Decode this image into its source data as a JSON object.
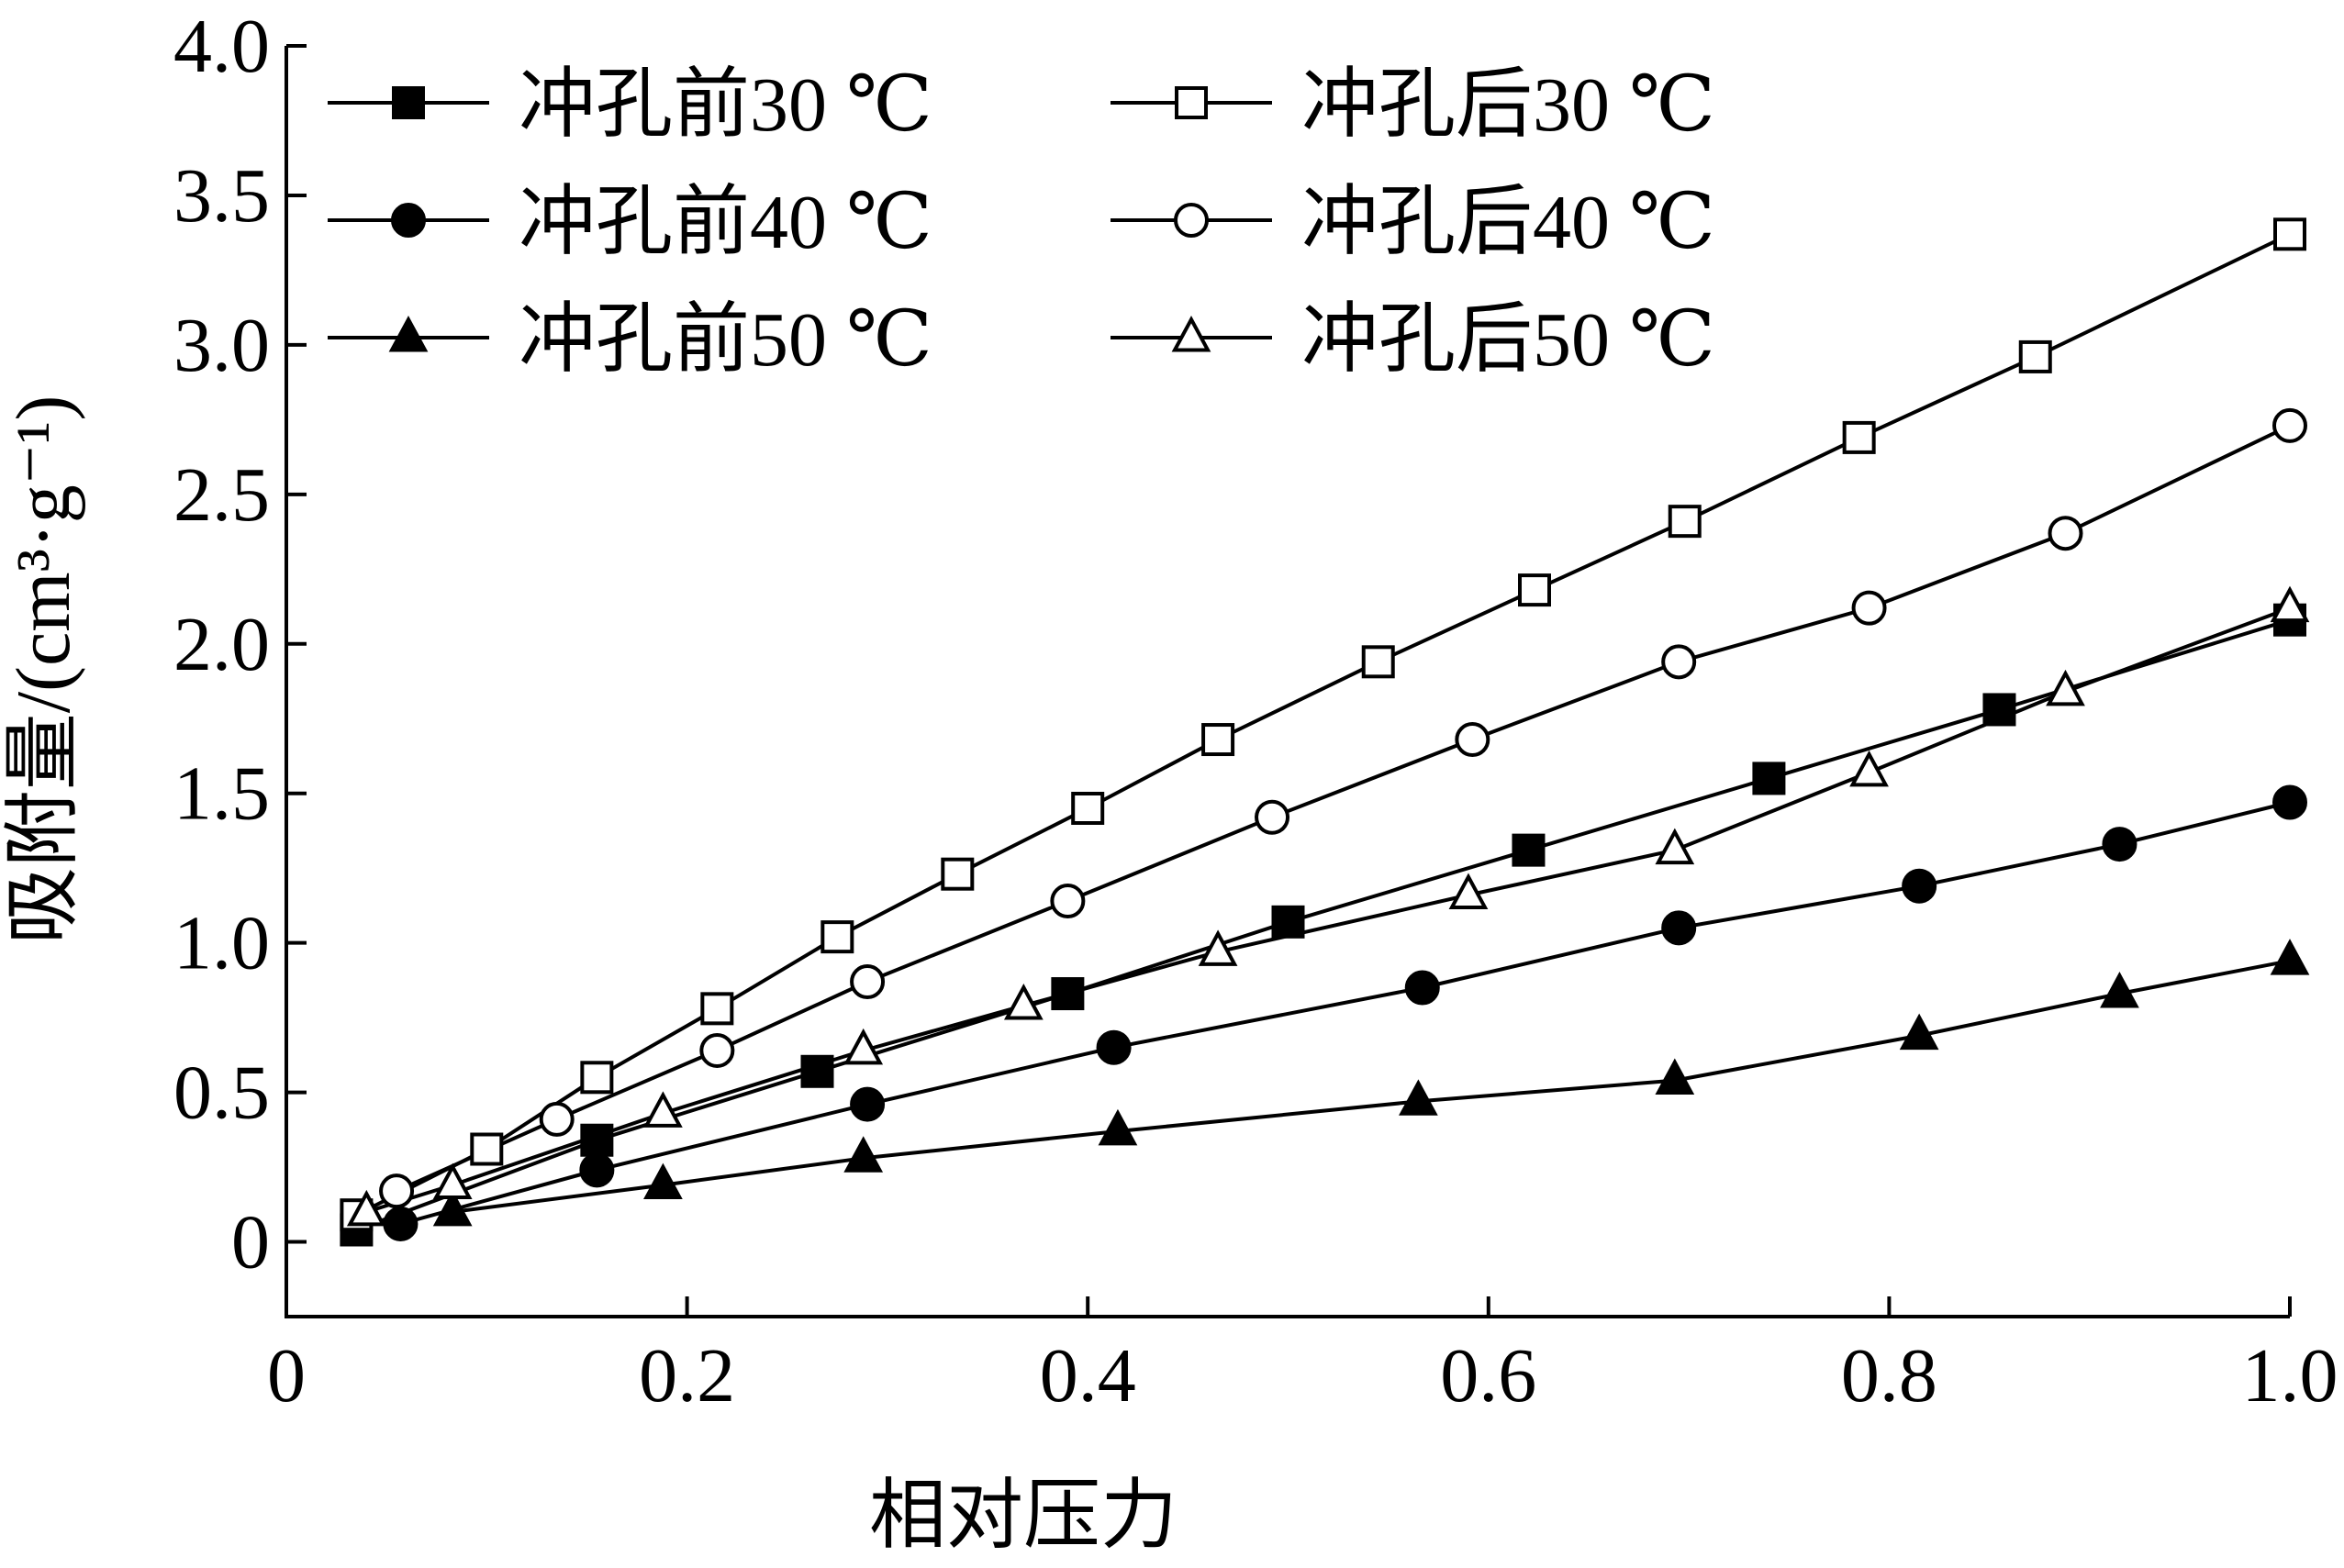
{
  "chart_data": {
    "type": "line",
    "xlabel": "相对压力",
    "ylabel": "吸附量/(cm³·g⁻¹)",
    "xlim": [
      0,
      1.0
    ],
    "ylim": [
      -0.25,
      4.0
    ],
    "x_ticks": [
      0,
      0.2,
      0.4,
      0.6,
      0.8,
      1.0
    ],
    "x_tick_labels": [
      "0",
      "0.2",
      "0.4",
      "0.6",
      "0.8",
      "1.0"
    ],
    "y_ticks": [
      0,
      0.5,
      1.0,
      1.5,
      2.0,
      2.5,
      3.0,
      3.5,
      4.0
    ],
    "y_tick_labels": [
      "0",
      "0.5",
      "1.0",
      "1.5",
      "2.0",
      "2.5",
      "3.0",
      "3.5",
      "4.0"
    ],
    "grid": false,
    "legend_position": "top-left",
    "series": [
      {
        "name": "冲孔前30 ℃",
        "marker": "square-filled",
        "x": [
          0.035,
          0.155,
          0.265,
          0.39,
          0.5,
          0.62,
          0.74,
          0.855,
          1.0
        ],
        "y": [
          0.04,
          0.34,
          0.57,
          0.83,
          1.07,
          1.31,
          1.55,
          1.78,
          2.08
        ]
      },
      {
        "name": "冲孔前40 ℃",
        "marker": "circle-filled",
        "x": [
          0.057,
          0.155,
          0.29,
          0.413,
          0.567,
          0.695,
          0.815,
          0.915,
          1.0
        ],
        "y": [
          0.06,
          0.24,
          0.46,
          0.65,
          0.85,
          1.05,
          1.19,
          1.33,
          1.47
        ]
      },
      {
        "name": "冲孔前50 ℃",
        "marker": "triangle-filled",
        "x": [
          0.083,
          0.188,
          0.288,
          0.415,
          0.565,
          0.693,
          0.815,
          0.915,
          1.0
        ],
        "y": [
          0.1,
          0.19,
          0.28,
          0.37,
          0.47,
          0.54,
          0.69,
          0.83,
          0.94
        ]
      },
      {
        "name": "冲孔后30 ℃",
        "marker": "square-open",
        "x": [
          0.035,
          0.1,
          0.155,
          0.215,
          0.275,
          0.335,
          0.4,
          0.465,
          0.545,
          0.623,
          0.698,
          0.785,
          0.873,
          1.0
        ],
        "y": [
          0.09,
          0.31,
          0.55,
          0.78,
          1.02,
          1.23,
          1.45,
          1.68,
          1.94,
          2.18,
          2.41,
          2.69,
          2.96,
          3.37
        ]
      },
      {
        "name": "冲孔后40 ℃",
        "marker": "circle-open",
        "x": [
          0.055,
          0.135,
          0.215,
          0.29,
          0.39,
          0.492,
          0.592,
          0.695,
          0.79,
          0.888,
          1.0
        ],
        "y": [
          0.17,
          0.41,
          0.64,
          0.87,
          1.14,
          1.42,
          1.68,
          1.94,
          2.12,
          2.37,
          2.73
        ]
      },
      {
        "name": "冲孔后50 ℃",
        "marker": "triangle-open",
        "x": [
          0.04,
          0.083,
          0.188,
          0.288,
          0.368,
          0.465,
          0.59,
          0.693,
          0.79,
          0.888,
          1.0
        ],
        "y": [
          0.1,
          0.19,
          0.43,
          0.64,
          0.79,
          0.97,
          1.16,
          1.31,
          1.57,
          1.84,
          2.12
        ]
      }
    ]
  }
}
